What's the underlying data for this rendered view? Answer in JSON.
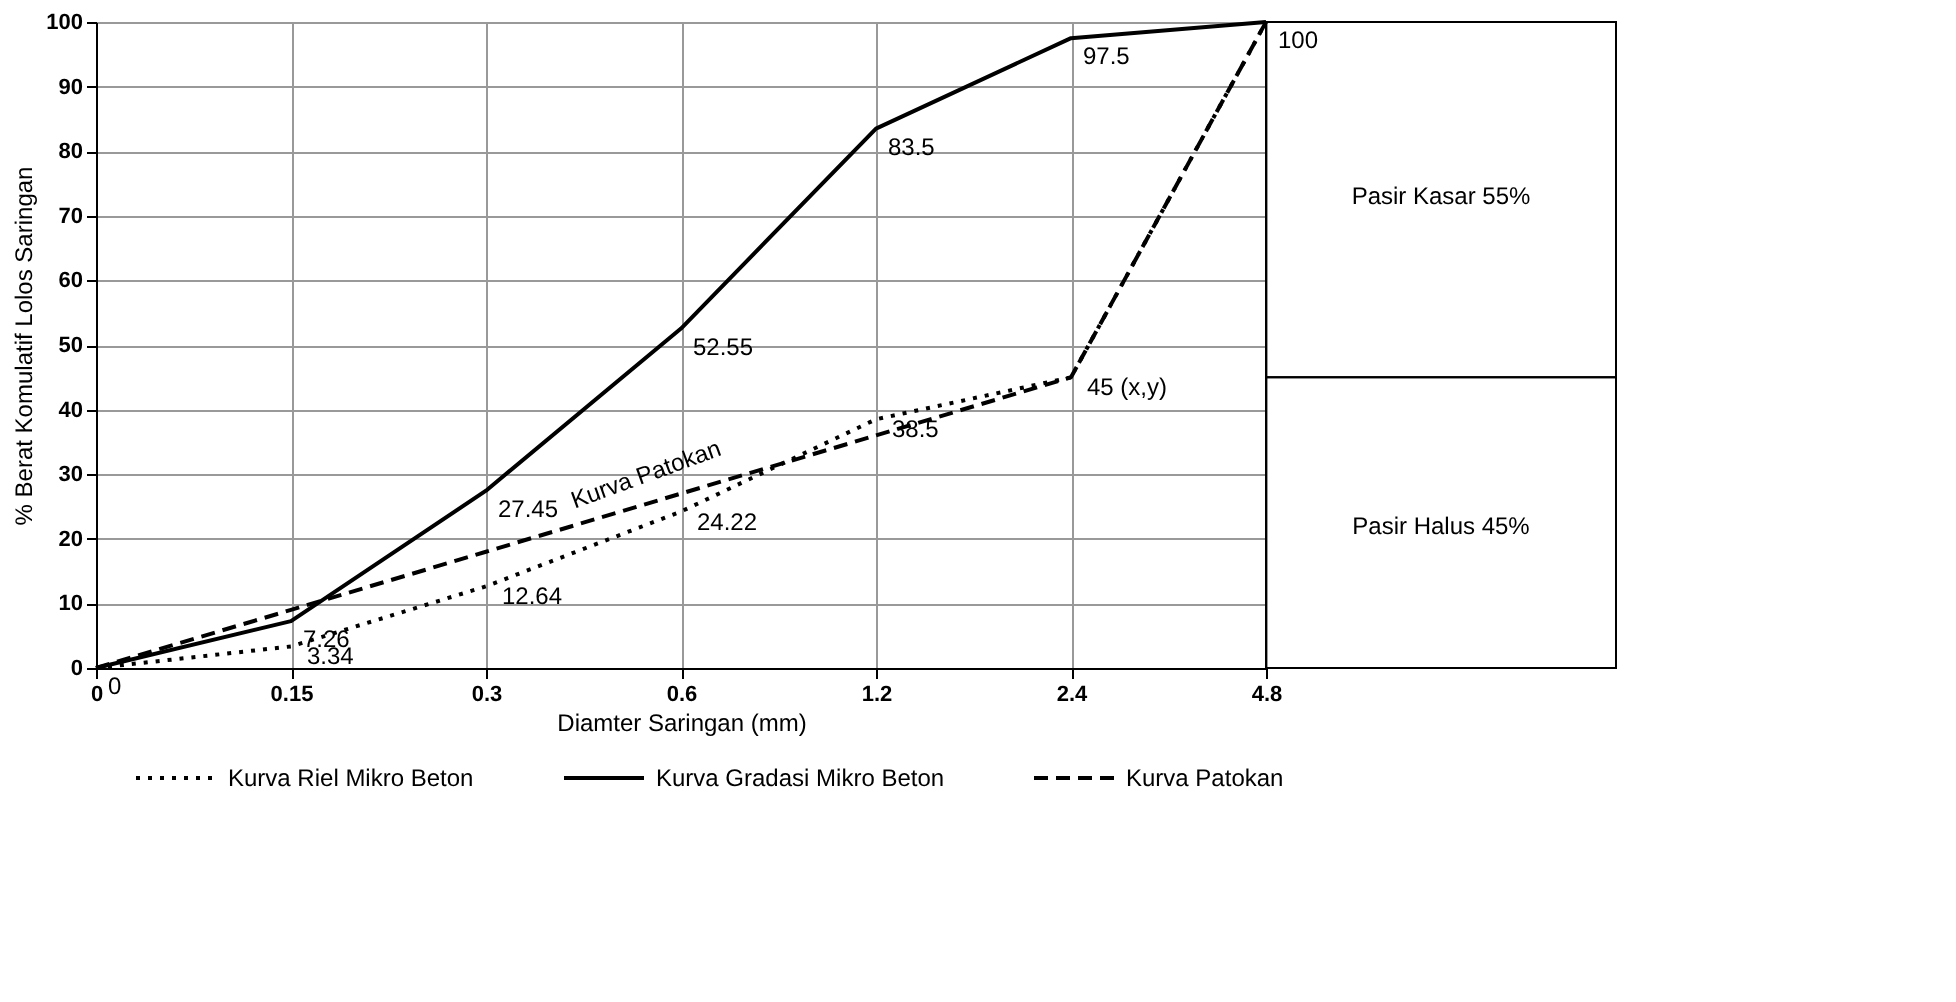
{
  "chart_data": {
    "type": "line",
    "xlabel": "Diamter Saringan (mm)",
    "ylabel": "% Berat Komulatif Lolos Saringan",
    "categories": [
      "0",
      "0.15",
      "0.3",
      "0.6",
      "1.2",
      "2.4",
      "4.8"
    ],
    "series": [
      {
        "name": "Kurva Riel Mikro Beton",
        "color": "#000000",
        "line_style": "dotted",
        "values": [
          0,
          3.34,
          12.64,
          24.22,
          38.5,
          45,
          100
        ],
        "value_labels": [
          null,
          "3.34",
          "12.64",
          "24.22",
          "38.5",
          "45 (x,y)",
          null
        ]
      },
      {
        "name": "Kurva Gradasi Mikro Beton",
        "color": "#000000",
        "line_style": "solid",
        "values": [
          0,
          7.26,
          27.45,
          52.55,
          83.5,
          97.5,
          100
        ],
        "value_labels": [
          "0",
          "7.26",
          "27.45",
          "52.55",
          "83.5",
          "97.5",
          "100"
        ]
      },
      {
        "name": "Kurva Patokan",
        "color": "#000000",
        "line_style": "dashed",
        "values": [
          0,
          9,
          18,
          27,
          36,
          45,
          100
        ]
      }
    ],
    "ylim": [
      0,
      100
    ],
    "yticks": [
      0,
      10,
      20,
      30,
      40,
      50,
      60,
      70,
      80,
      90,
      100
    ],
    "grid": true,
    "legend": "bottom",
    "marker": "none",
    "annotations": [
      "Kurva Patokan",
      "Pasir Kasar 55%",
      "Pasir Halus 45%"
    ]
  }
}
